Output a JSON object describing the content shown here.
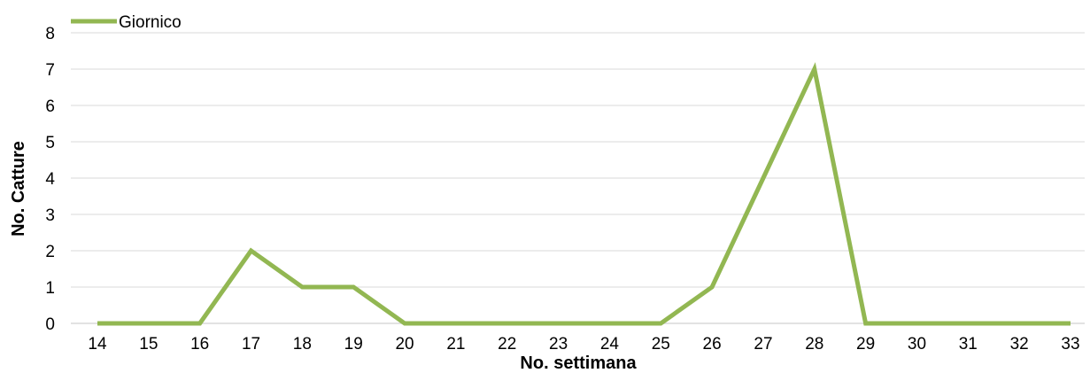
{
  "chart_data": {
    "type": "line",
    "title": "",
    "xlabel": "No. settimana",
    "ylabel": "No. Catture",
    "x": [
      "14",
      "15",
      "16",
      "17",
      "18",
      "19",
      "20",
      "21",
      "22",
      "23",
      "24",
      "25",
      "26",
      "27",
      "28",
      "29",
      "30",
      "31",
      "32",
      "33"
    ],
    "series": [
      {
        "name": "Giornico",
        "color": "#92b752",
        "values": [
          0,
          0,
          0,
          2,
          1,
          1,
          0,
          0,
          0,
          0,
          0,
          0,
          1,
          4,
          7,
          0,
          0,
          0,
          0,
          0
        ]
      }
    ],
    "ylim": [
      0,
      8
    ],
    "yticks": [
      "0",
      "1",
      "2",
      "3",
      "4",
      "5",
      "6",
      "7",
      "8"
    ],
    "grid": true,
    "legend": "top-left"
  }
}
